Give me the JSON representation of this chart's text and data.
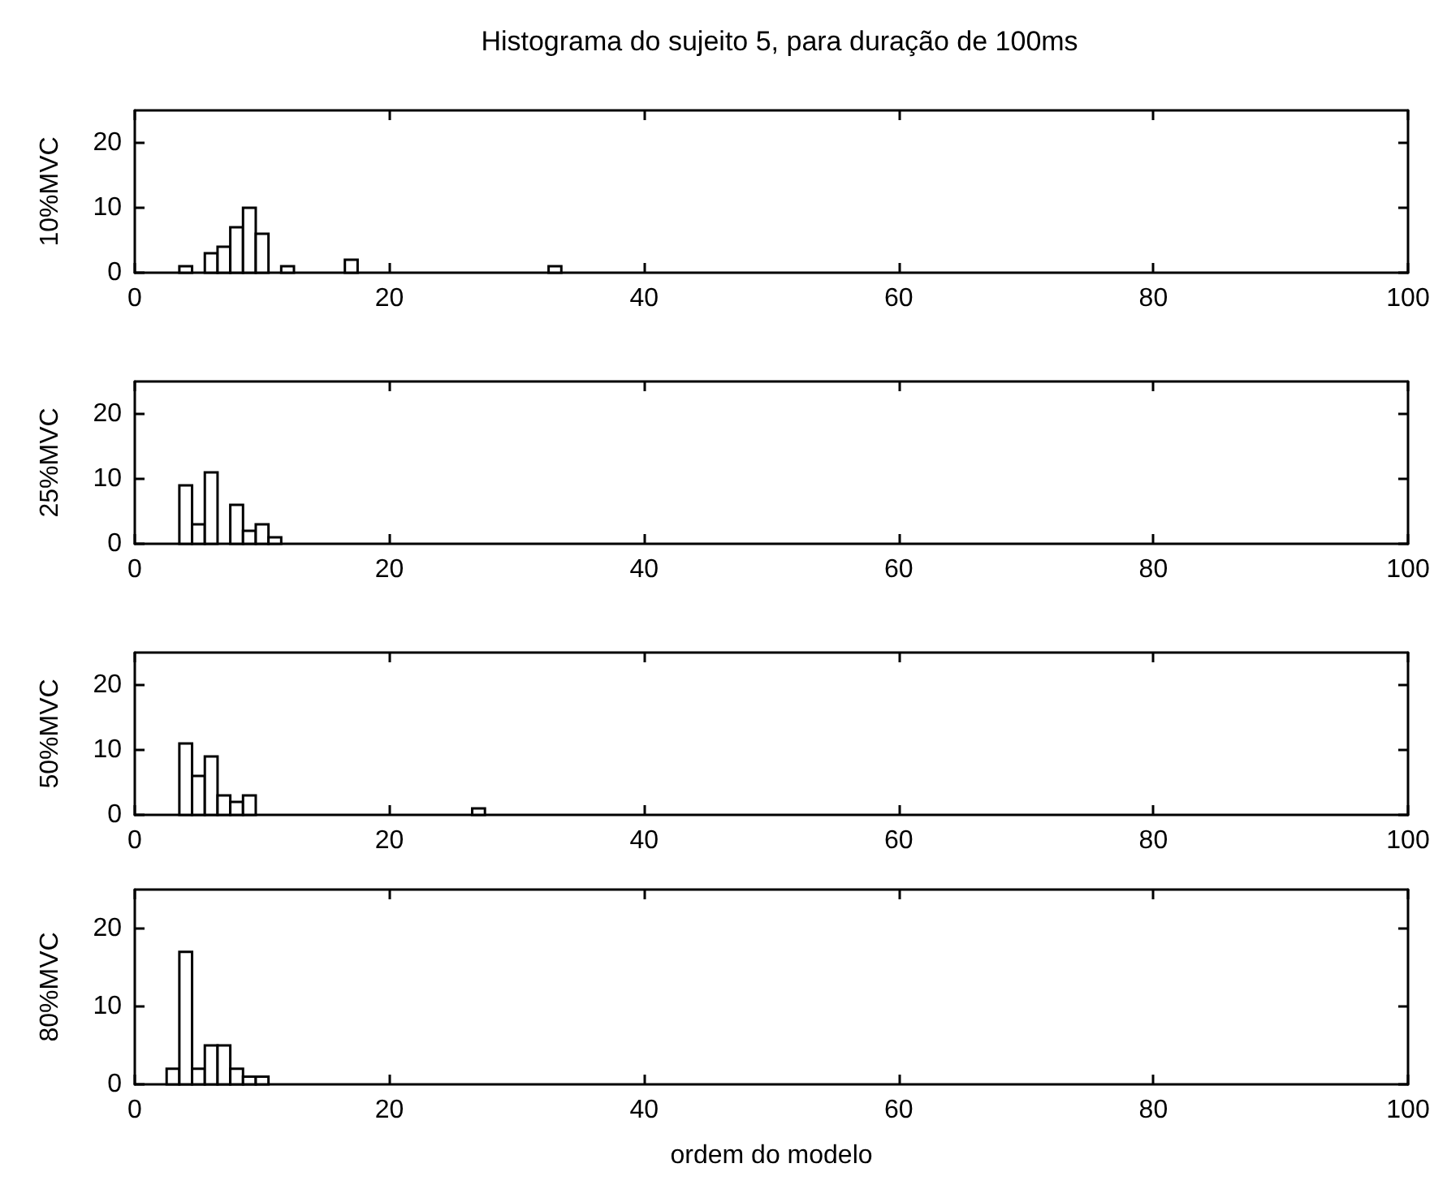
{
  "chart_data": [
    {
      "type": "histogram",
      "title": "Histograma do sujeito 5, para duração de 100ms",
      "ylabel": "10%MVC",
      "bins": [
        3.5,
        4.5,
        5.5,
        6.5,
        7.5,
        8.5,
        9.5,
        10.5,
        11.5,
        12.5,
        13.5,
        14.5,
        15.5,
        16.5,
        17.5,
        18.5,
        19.5,
        20.5,
        21.5,
        22.5,
        23.5,
        24.5,
        25.5,
        26.5,
        27.5,
        28.5,
        29.5,
        30.5,
        31.5,
        32.5,
        33.5
      ],
      "values": [
        1,
        0,
        3,
        4,
        7,
        10,
        6,
        0,
        1,
        0,
        0,
        0,
        0,
        2,
        0,
        0,
        0,
        0,
        0,
        0,
        0,
        0,
        0,
        0,
        0,
        0,
        0,
        0,
        0,
        1
      ],
      "color": "#ffffff",
      "xlim": [
        0,
        100
      ],
      "xticks": [
        0,
        20,
        40,
        60,
        80,
        100
      ],
      "ylim": [
        0,
        25
      ],
      "yticks": [
        0,
        10,
        20
      ],
      "grid": false
    },
    {
      "type": "histogram",
      "ylabel": "25%MVC",
      "bins": [
        3.5,
        4.5,
        5.5,
        6.5,
        7.5,
        8.5,
        9.5,
        10.5,
        11.5
      ],
      "values": [
        9,
        3,
        11,
        0,
        6,
        2,
        3,
        1
      ],
      "color": "#ffffff",
      "xlim": [
        0,
        100
      ],
      "xticks": [
        0,
        20,
        40,
        60,
        80,
        100
      ],
      "ylim": [
        0,
        25
      ],
      "yticks": [
        0,
        10,
        20
      ],
      "grid": false
    },
    {
      "type": "histogram",
      "ylabel": "50%MVC",
      "bins": [
        3.5,
        4.5,
        5.5,
        6.5,
        7.5,
        8.5,
        9.5,
        10.5,
        11.5,
        12.5,
        13.5,
        14.5,
        15.5,
        16.5,
        17.5,
        18.5,
        19.5,
        20.5,
        21.5,
        22.5,
        23.5,
        24.5,
        25.5,
        26.5,
        27.5
      ],
      "values": [
        11,
        6,
        9,
        3,
        2,
        3,
        0,
        0,
        0,
        0,
        0,
        0,
        0,
        0,
        0,
        0,
        0,
        0,
        0,
        0,
        0,
        0,
        0,
        1
      ],
      "color": "#ffffff",
      "xlim": [
        0,
        100
      ],
      "xticks": [
        0,
        20,
        40,
        60,
        80,
        100
      ],
      "ylim": [
        0,
        25
      ],
      "yticks": [
        0,
        10,
        20
      ],
      "grid": false
    },
    {
      "type": "histogram",
      "ylabel": "80%MVC",
      "xlabel": "ordem do modelo",
      "bins": [
        2.5,
        3.5,
        4.5,
        5.5,
        6.5,
        7.5,
        8.5,
        9.5,
        10.5
      ],
      "values": [
        2,
        17,
        2,
        5,
        5,
        2,
        1,
        1
      ],
      "color": "#ffffff",
      "xlim": [
        0,
        100
      ],
      "xticks": [
        0,
        20,
        40,
        60,
        80,
        100
      ],
      "ylim": [
        0,
        25
      ],
      "yticks": [
        0,
        10,
        20
      ],
      "grid": false
    }
  ]
}
